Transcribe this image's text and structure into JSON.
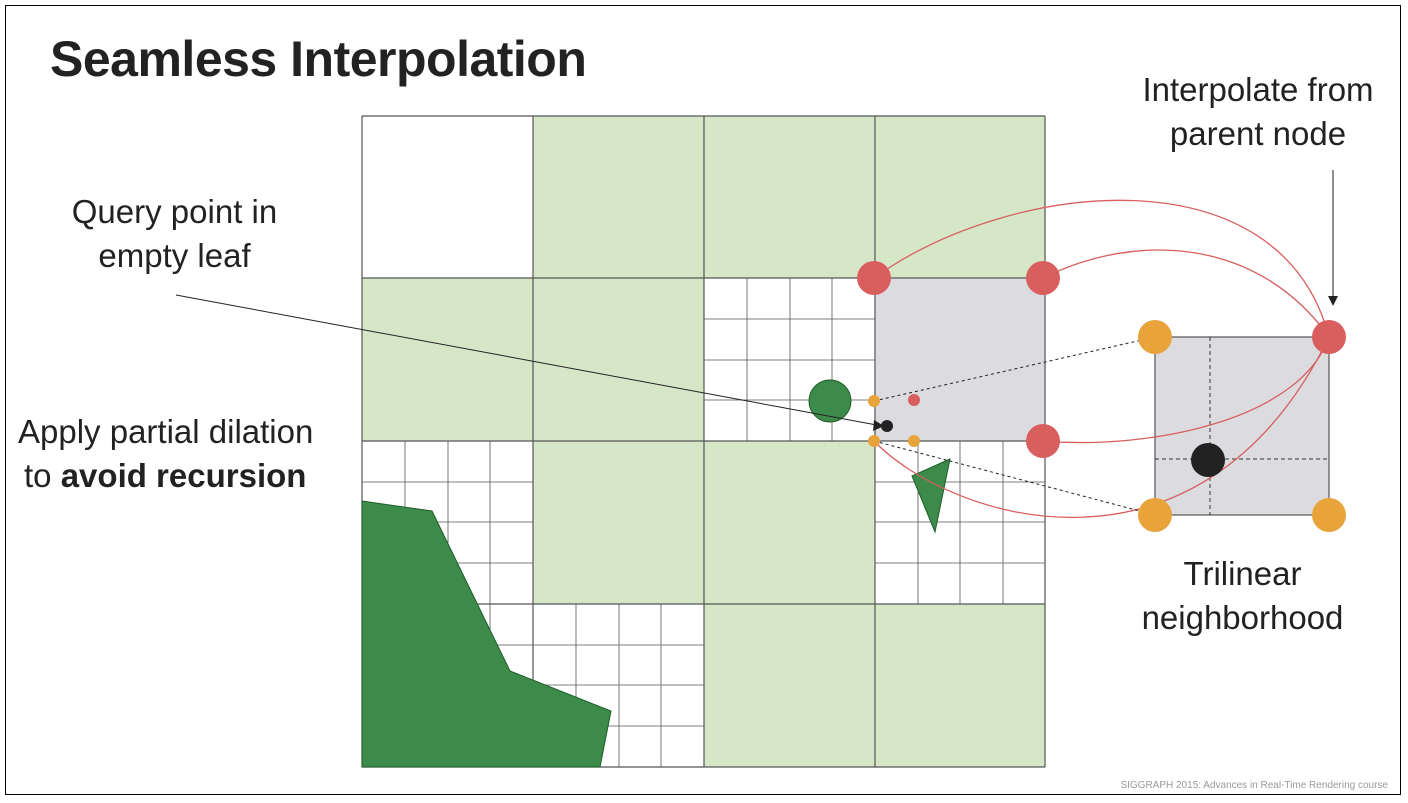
{
  "slide": {
    "title": "Seamless Interpolation",
    "footer": "SIGGRAPH 2015: Advances in Real-Time Rendering course"
  },
  "annotations": {
    "interpolate_line1": "Interpolate from",
    "interpolate_line2": "parent node",
    "query_line1": "Query point in",
    "query_line2": "empty leaf",
    "dilation_line1": "Apply partial dilation",
    "dilation_line2_prefix": "to ",
    "dilation_line2_bold": "avoid recursion",
    "trilinear_line1": "Trilinear",
    "trilinear_line2": "neighborhood"
  },
  "colors": {
    "occupied_cell": "#d6e7c8",
    "parent_cell": "#dcdce0",
    "grid_line": "#555555",
    "geometry": "#3d8b4a",
    "parent_corner": "#d95f5f",
    "trilinear_corner": "#e8a33a",
    "query_point": "#222222"
  }
}
